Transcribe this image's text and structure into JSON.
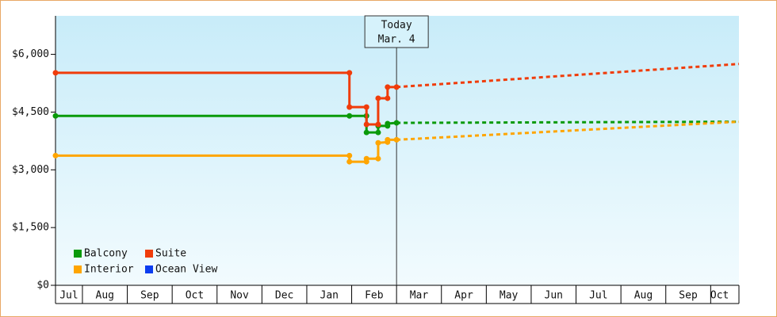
{
  "chart_data": {
    "type": "line",
    "xlim": [
      0.4,
      15.63
    ],
    "ylim": [
      0,
      7000
    ],
    "yticks": [
      {
        "value": 0,
        "label": "$0"
      },
      {
        "value": 1500,
        "label": "$1,500"
      },
      {
        "value": 3000,
        "label": "$3,000"
      },
      {
        "value": 4500,
        "label": "$4,500"
      },
      {
        "value": 6000,
        "label": "$6,000"
      }
    ],
    "xticks": [
      {
        "value": 0.7,
        "label": "Jul"
      },
      {
        "value": 1.5,
        "label": "Aug"
      },
      {
        "value": 2.5,
        "label": "Sep"
      },
      {
        "value": 3.5,
        "label": "Oct"
      },
      {
        "value": 4.5,
        "label": "Nov"
      },
      {
        "value": 5.5,
        "label": "Dec"
      },
      {
        "value": 6.5,
        "label": "Jan"
      },
      {
        "value": 7.5,
        "label": "Feb"
      },
      {
        "value": 8.5,
        "label": "Mar"
      },
      {
        "value": 9.5,
        "label": "Apr"
      },
      {
        "value": 10.5,
        "label": "May"
      },
      {
        "value": 11.5,
        "label": "Jun"
      },
      {
        "value": 12.5,
        "label": "Jul"
      },
      {
        "value": 13.5,
        "label": "Aug"
      },
      {
        "value": 14.5,
        "label": "Sep"
      },
      {
        "value": 15.2,
        "label": "Oct"
      }
    ],
    "today": {
      "x": 8.0,
      "label": "Today",
      "date": "Mar. 4"
    },
    "series": [
      {
        "name": "Balcony",
        "color": "#0a9a0a",
        "x": [
          0.4,
          6.95,
          7.33,
          7.33,
          7.59,
          7.59,
          7.8,
          7.8,
          8.0
        ],
        "values": [
          4400,
          4400,
          4400,
          3970,
          3970,
          4140,
          4140,
          4200,
          4220
        ],
        "forecast": {
          "x": [
            8.0,
            15.63
          ],
          "values": [
            4220,
            4250
          ]
        }
      },
      {
        "name": "Suite",
        "color": "#f03c0a",
        "x": [
          0.4,
          6.95,
          6.95,
          7.33,
          7.33,
          7.59,
          7.59,
          7.8,
          7.8,
          8.0
        ],
        "values": [
          5520,
          5520,
          4630,
          4630,
          4180,
          4180,
          4860,
          4860,
          5150,
          5150
        ],
        "forecast": {
          "x": [
            8.0,
            15.63
          ],
          "values": [
            5150,
            5750
          ]
        }
      },
      {
        "name": "Interior",
        "color": "#ffa500",
        "x": [
          0.4,
          6.95,
          6.95,
          7.33,
          7.33,
          7.59,
          7.59,
          7.8,
          7.8,
          8.0
        ],
        "values": [
          3370,
          3370,
          3210,
          3210,
          3290,
          3290,
          3700,
          3720,
          3780,
          3780
        ],
        "forecast": {
          "x": [
            8.0,
            15.63
          ],
          "values": [
            3780,
            4250
          ]
        }
      },
      {
        "name": "Ocean View",
        "color": "#0a3cf0",
        "x": [],
        "values": []
      }
    ]
  }
}
